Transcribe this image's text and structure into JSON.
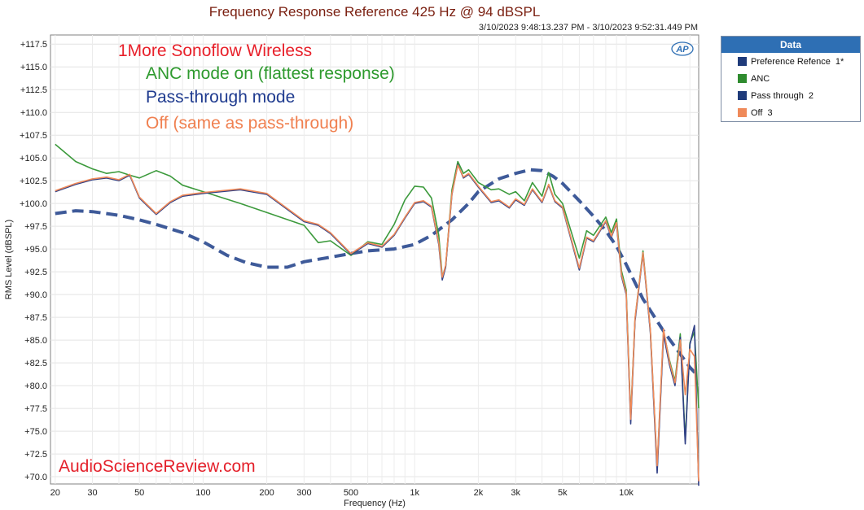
{
  "header": {
    "title": "Frequency Response Reference 425 Hz @ 94 dBSPL",
    "timestamp": "3/10/2023 9:48:13.237 PM - 3/10/2023 9:52:31.449 PM"
  },
  "logo_text": "AP",
  "annotations": {
    "product": "1More Sonoflow Wireless",
    "anc": "ANC mode on (flattest response)",
    "pass": "Pass-through mode",
    "off": "Off (same as pass-through)",
    "watermark": "AudioScienceReview.com"
  },
  "colors": {
    "reference": "#3e5a99",
    "anc": "#3c9a3c",
    "pass_through": "#2f3f85",
    "off": "#ef8a5a",
    "title": "#7a1f10",
    "product_label": "#e8202a",
    "anc_label": "#2e9a2e",
    "pass_label": "#1f3b8f",
    "off_label": "#f08050",
    "watermark": "#e4202a",
    "legend_header": "#2e6fb4"
  },
  "legend": {
    "header": "Data",
    "items": [
      {
        "label": "Preference Refence",
        "num": "1*",
        "color": "#1f3b7a"
      },
      {
        "label": "ANC",
        "num": "",
        "color": "#2e8b2e"
      },
      {
        "label": "Pass through",
        "num": "2",
        "color": "#1f3b7a"
      },
      {
        "label": "Off",
        "num": "3",
        "color": "#ef8a5a"
      }
    ]
  },
  "chart_data": {
    "type": "line",
    "title": "Frequency Response Reference 425 Hz @ 94 dBSPL",
    "xlabel": "Frequency (Hz)",
    "ylabel": "RMS Level (dBSPL)",
    "xscale": "log",
    "xlim": [
      19,
      22000
    ],
    "ylim": [
      69.2,
      118.5
    ],
    "grid": true,
    "legend_position": "right",
    "x_ticks": [
      20,
      30,
      50,
      100,
      200,
      300,
      500,
      1000,
      2000,
      3000,
      5000,
      10000
    ],
    "x_tick_labels": [
      "20",
      "30",
      "50",
      "100",
      "200",
      "300",
      "500",
      "1k",
      "2k",
      "3k",
      "5k",
      "10k"
    ],
    "y_ticks": [
      70,
      72.5,
      75,
      77.5,
      80,
      82.5,
      85,
      87.5,
      90,
      92.5,
      95,
      97.5,
      100,
      102.5,
      105,
      107.5,
      110,
      112.5,
      115,
      117.5
    ],
    "y_tick_labels": [
      "+70.0",
      "+72.5",
      "+75.0",
      "+77.5",
      "+80.0",
      "+82.5",
      "+85.0",
      "+87.5",
      "+90.0",
      "+92.5",
      "+95.0",
      "+97.5",
      "+100.0",
      "+102.5",
      "+105.0",
      "+107.5",
      "+110.0",
      "+112.5",
      "+115.0",
      "+117.5"
    ],
    "series": [
      {
        "name": "Preference Refence",
        "style": "dashed",
        "x": [
          20,
          25,
          30,
          40,
          50,
          60,
          80,
          100,
          130,
          160,
          200,
          250,
          300,
          400,
          500,
          600,
          800,
          1000,
          1200,
          1500,
          1800,
          2000,
          2500,
          3000,
          3500,
          4000,
          4500,
          5000,
          6000,
          7000,
          8000,
          9000,
          10000,
          12000,
          15000,
          20000,
          22000
        ],
        "y": [
          98.9,
          99.2,
          99.1,
          98.7,
          98.2,
          97.7,
          96.8,
          95.8,
          94.3,
          93.5,
          93.0,
          93.0,
          93.6,
          94.1,
          94.5,
          94.8,
          95.0,
          95.5,
          96.5,
          98.2,
          100.0,
          101.3,
          102.7,
          103.3,
          103.7,
          103.6,
          103.0,
          102.2,
          100.3,
          98.6,
          97.0,
          95.3,
          93.3,
          89.5,
          86.0,
          82.0,
          81.0
        ]
      },
      {
        "name": "ANC",
        "x": [
          20,
          25,
          30,
          35,
          40,
          45,
          50,
          60,
          70,
          80,
          100,
          150,
          200,
          300,
          350,
          400,
          500,
          600,
          700,
          800,
          900,
          1000,
          1100,
          1200,
          1300,
          1350,
          1400,
          1500,
          1600,
          1700,
          1800,
          2000,
          2300,
          2500,
          2800,
          3000,
          3300,
          3600,
          4000,
          4300,
          4600,
          5000,
          6000,
          6500,
          7000,
          8000,
          8500,
          9000,
          9500,
          10000,
          10500,
          11000,
          12000,
          13000,
          14000,
          15000,
          16000,
          17000,
          18000,
          19000,
          20000,
          21000,
          22000
        ],
        "y": [
          106.5,
          104.6,
          103.8,
          103.3,
          103.5,
          103.1,
          102.8,
          103.6,
          103.0,
          102.0,
          101.3,
          100.0,
          99.0,
          97.6,
          95.7,
          95.9,
          94.3,
          95.8,
          95.5,
          97.7,
          100.4,
          101.9,
          101.8,
          100.6,
          96.5,
          92.0,
          93.0,
          101.5,
          104.6,
          103.3,
          103.7,
          102.3,
          101.5,
          101.6,
          101.0,
          101.3,
          100.3,
          102.3,
          100.8,
          103.4,
          101.0,
          100.0,
          94.0,
          97.0,
          96.5,
          98.5,
          96.8,
          98.3,
          92.6,
          90.5,
          76.5,
          87.3,
          94.8,
          86.1,
          71.0,
          86.0,
          82.8,
          80.5,
          85.7,
          74.0,
          84.7,
          85.9,
          77.5
        ]
      },
      {
        "name": "Pass through",
        "x": [
          20,
          25,
          30,
          35,
          40,
          45,
          50,
          60,
          70,
          80,
          100,
          150,
          200,
          300,
          350,
          400,
          500,
          600,
          700,
          800,
          900,
          1000,
          1100,
          1200,
          1300,
          1350,
          1400,
          1500,
          1600,
          1700,
          1800,
          2000,
          2300,
          2500,
          2800,
          3000,
          3300,
          3600,
          4000,
          4300,
          4600,
          5000,
          6000,
          6500,
          7000,
          8000,
          8500,
          9000,
          9500,
          10000,
          10500,
          11000,
          12000,
          13000,
          14000,
          15000,
          16000,
          17000,
          18000,
          19000,
          20000,
          21000,
          22000
        ],
        "y": [
          101.3,
          102.1,
          102.6,
          102.8,
          102.5,
          103.1,
          100.6,
          98.8,
          100.1,
          100.8,
          101.1,
          101.5,
          101.0,
          98.0,
          97.6,
          96.7,
          94.4,
          95.6,
          95.2,
          96.5,
          98.4,
          100.0,
          100.2,
          99.6,
          95.5,
          91.6,
          93.0,
          101.0,
          104.3,
          102.8,
          103.2,
          101.8,
          100.1,
          100.3,
          99.5,
          100.4,
          99.8,
          101.5,
          100.1,
          102.0,
          100.2,
          99.5,
          92.7,
          96.2,
          95.8,
          98.0,
          96.3,
          97.8,
          92.0,
          90.0,
          75.8,
          87.1,
          94.5,
          85.9,
          70.4,
          85.6,
          82.3,
          80.0,
          85.3,
          73.6,
          84.5,
          86.6,
          69.0
        ]
      },
      {
        "name": "Off",
        "x": [
          20,
          25,
          30,
          35,
          40,
          45,
          50,
          60,
          70,
          80,
          100,
          150,
          200,
          300,
          350,
          400,
          500,
          600,
          700,
          800,
          900,
          1000,
          1100,
          1200,
          1300,
          1350,
          1400,
          1500,
          1600,
          1700,
          1800,
          2000,
          2300,
          2500,
          2800,
          3000,
          3300,
          3600,
          4000,
          4300,
          4600,
          5000,
          6000,
          6500,
          7000,
          8000,
          8500,
          9000,
          9500,
          10000,
          10500,
          11000,
          12000,
          13000,
          14000,
          15000,
          16000,
          17000,
          18000,
          19000,
          20000,
          21000,
          22000
        ],
        "y": [
          101.4,
          102.2,
          102.7,
          102.9,
          102.6,
          103.2,
          100.7,
          98.9,
          100.2,
          100.9,
          101.2,
          101.6,
          101.1,
          98.1,
          97.7,
          96.8,
          94.5,
          95.7,
          95.3,
          96.6,
          98.5,
          100.1,
          100.3,
          99.7,
          95.7,
          91.9,
          93.2,
          101.1,
          104.2,
          102.9,
          103.3,
          101.9,
          100.2,
          100.4,
          99.6,
          100.5,
          99.9,
          101.6,
          100.2,
          102.1,
          100.3,
          99.6,
          92.9,
          96.3,
          95.9,
          98.1,
          96.4,
          97.9,
          92.2,
          90.2,
          76.3,
          87.4,
          94.6,
          86.2,
          71.2,
          86.2,
          82.6,
          80.3,
          85.0,
          79.0,
          84.0,
          83.2,
          69.5
        ]
      }
    ]
  }
}
